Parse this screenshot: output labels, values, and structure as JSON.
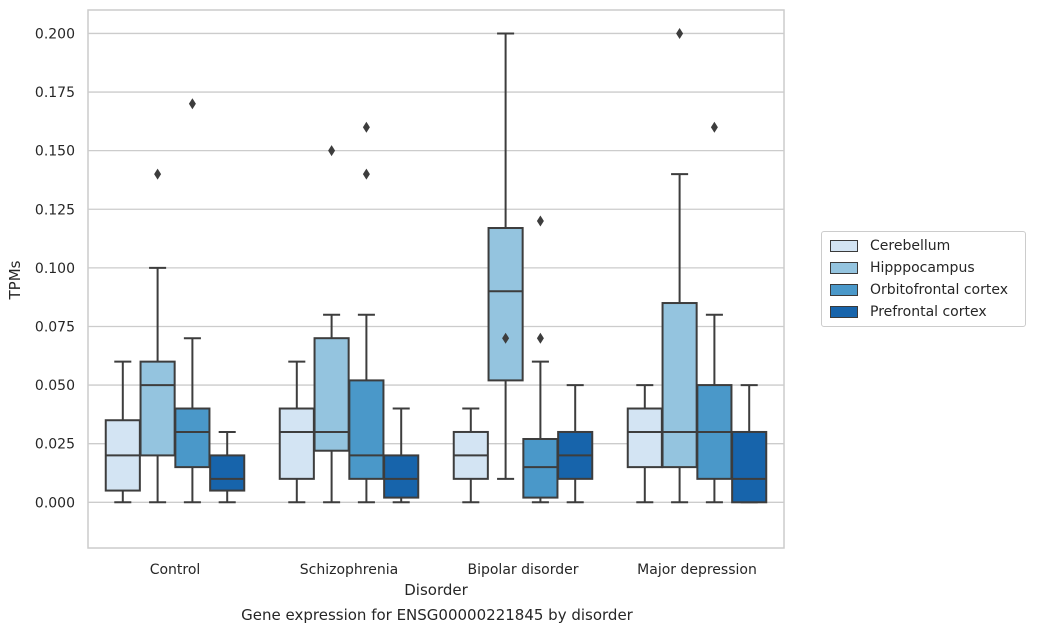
{
  "caption": "Gene expression for ENSG00000221845 by disorder",
  "chart_data": {
    "type": "box",
    "title": "",
    "xlabel": "Disorder",
    "ylabel": "TPMs",
    "ylim": [
      -0.0195,
      0.21
    ],
    "yticks": [
      0.0,
      0.025,
      0.05,
      0.075,
      0.1,
      0.125,
      0.15,
      0.175,
      0.2
    ],
    "ytick_labels": [
      "0.000",
      "0.025",
      "0.050",
      "0.075",
      "0.100",
      "0.125",
      "0.150",
      "0.175",
      "0.200"
    ],
    "grid": "horizontal",
    "legend_position": "right",
    "categories": [
      "Control",
      "Schizophrenia",
      "Bipolar disorder",
      "Major depression"
    ],
    "series": [
      {
        "name": "Cerebellum",
        "color": "#d3e4f3",
        "boxes": [
          {
            "whislo": 0.0,
            "q1": 0.005,
            "med": 0.02,
            "q3": 0.035,
            "whishi": 0.06,
            "fliers": []
          },
          {
            "whislo": 0.0,
            "q1": 0.01,
            "med": 0.03,
            "q3": 0.04,
            "whishi": 0.06,
            "fliers": []
          },
          {
            "whislo": 0.0,
            "q1": 0.01,
            "med": 0.02,
            "q3": 0.03,
            "whishi": 0.04,
            "fliers": []
          },
          {
            "whislo": 0.0,
            "q1": 0.015,
            "med": 0.03,
            "q3": 0.04,
            "whishi": 0.05,
            "fliers": []
          }
        ]
      },
      {
        "name": "Hipppocampus",
        "color": "#94c4df",
        "boxes": [
          {
            "whislo": 0.0,
            "q1": 0.02,
            "med": 0.05,
            "q3": 0.06,
            "whishi": 0.1,
            "fliers": [
              0.14
            ]
          },
          {
            "whislo": 0.0,
            "q1": 0.022,
            "med": 0.03,
            "q3": 0.07,
            "whishi": 0.08,
            "fliers": [
              0.15
            ]
          },
          {
            "whislo": 0.01,
            "q1": 0.052,
            "med": 0.09,
            "q3": 0.117,
            "whishi": 0.2,
            "fliers": [
              0.07
            ]
          },
          {
            "whislo": 0.0,
            "q1": 0.015,
            "med": 0.03,
            "q3": 0.085,
            "whishi": 0.14,
            "fliers": [
              0.2
            ]
          }
        ]
      },
      {
        "name": "Orbitofrontal cortex",
        "color": "#4a98c9",
        "boxes": [
          {
            "whislo": 0.0,
            "q1": 0.015,
            "med": 0.03,
            "q3": 0.04,
            "whishi": 0.07,
            "fliers": [
              0.17
            ]
          },
          {
            "whislo": 0.0,
            "q1": 0.01,
            "med": 0.02,
            "q3": 0.052,
            "whishi": 0.08,
            "fliers": [
              0.14,
              0.16
            ]
          },
          {
            "whislo": 0.0,
            "q1": 0.002,
            "med": 0.015,
            "q3": 0.027,
            "whishi": 0.06,
            "fliers": [
              0.07,
              0.12
            ]
          },
          {
            "whislo": 0.0,
            "q1": 0.01,
            "med": 0.03,
            "q3": 0.05,
            "whishi": 0.08,
            "fliers": [
              0.16
            ]
          }
        ]
      },
      {
        "name": "Prefrontal cortex",
        "color": "#1764ab",
        "boxes": [
          {
            "whislo": 0.0,
            "q1": 0.005,
            "med": 0.01,
            "q3": 0.02,
            "whishi": 0.03,
            "fliers": []
          },
          {
            "whislo": 0.0,
            "q1": 0.002,
            "med": 0.01,
            "q3": 0.02,
            "whishi": 0.04,
            "fliers": []
          },
          {
            "whislo": 0.0,
            "q1": 0.01,
            "med": 0.02,
            "q3": 0.03,
            "whishi": 0.05,
            "fliers": []
          },
          {
            "whislo": 0.0,
            "q1": 0.0,
            "med": 0.01,
            "q3": 0.03,
            "whishi": 0.05,
            "fliers": []
          }
        ]
      }
    ]
  }
}
